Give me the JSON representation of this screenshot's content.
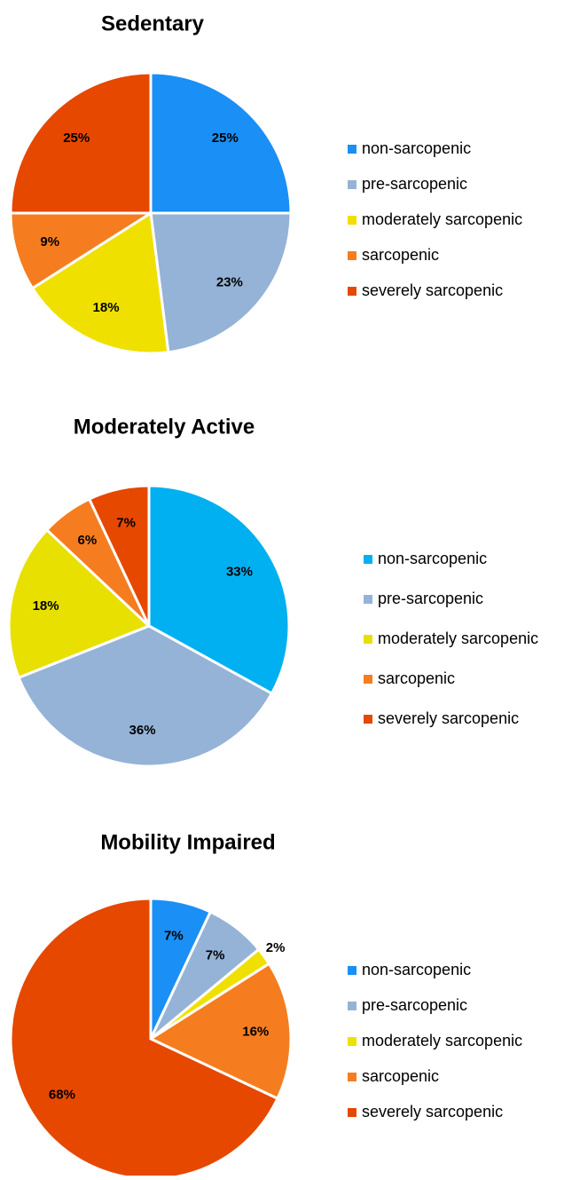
{
  "chart_data": [
    {
      "type": "pie",
      "title": "Sedentary",
      "categories": [
        "non-sarcopenic",
        "pre-sarcopenic",
        "moderately sarcopenic",
        "sarcopenic",
        "severely sarcopenic"
      ],
      "values": [
        25,
        23,
        18,
        9,
        25
      ],
      "value_labels": [
        "25%",
        "23%",
        "18%",
        "9%",
        "25%"
      ],
      "colors": [
        "#1a8ff5",
        "#95b3d7",
        "#f0e000",
        "#f57d1f",
        "#e64800"
      ]
    },
    {
      "type": "pie",
      "title": "Moderately Active",
      "categories": [
        "non-sarcopenic",
        "pre-sarcopenic",
        "moderately sarcopenic",
        "sarcopenic",
        "severely sarcopenic"
      ],
      "values": [
        33,
        36,
        18,
        6,
        7
      ],
      "value_labels": [
        "33%",
        "36%",
        "18%",
        "6%",
        "7%"
      ],
      "colors": [
        "#00b0f0",
        "#95b3d7",
        "#e8e000",
        "#f57d1f",
        "#e64800"
      ]
    },
    {
      "type": "pie",
      "title": "Mobility Impaired",
      "categories": [
        "non-sarcopenic",
        "pre-sarcopenic",
        "moderately sarcopenic",
        "sarcopenic",
        "severely sarcopenic"
      ],
      "values": [
        7,
        7,
        2,
        16,
        68
      ],
      "value_labels": [
        "7%",
        "7%",
        "2%",
        "16%",
        "68%"
      ],
      "colors": [
        "#1a8ff5",
        "#95b3d7",
        "#f0e000",
        "#f57d1f",
        "#e64800"
      ]
    }
  ]
}
